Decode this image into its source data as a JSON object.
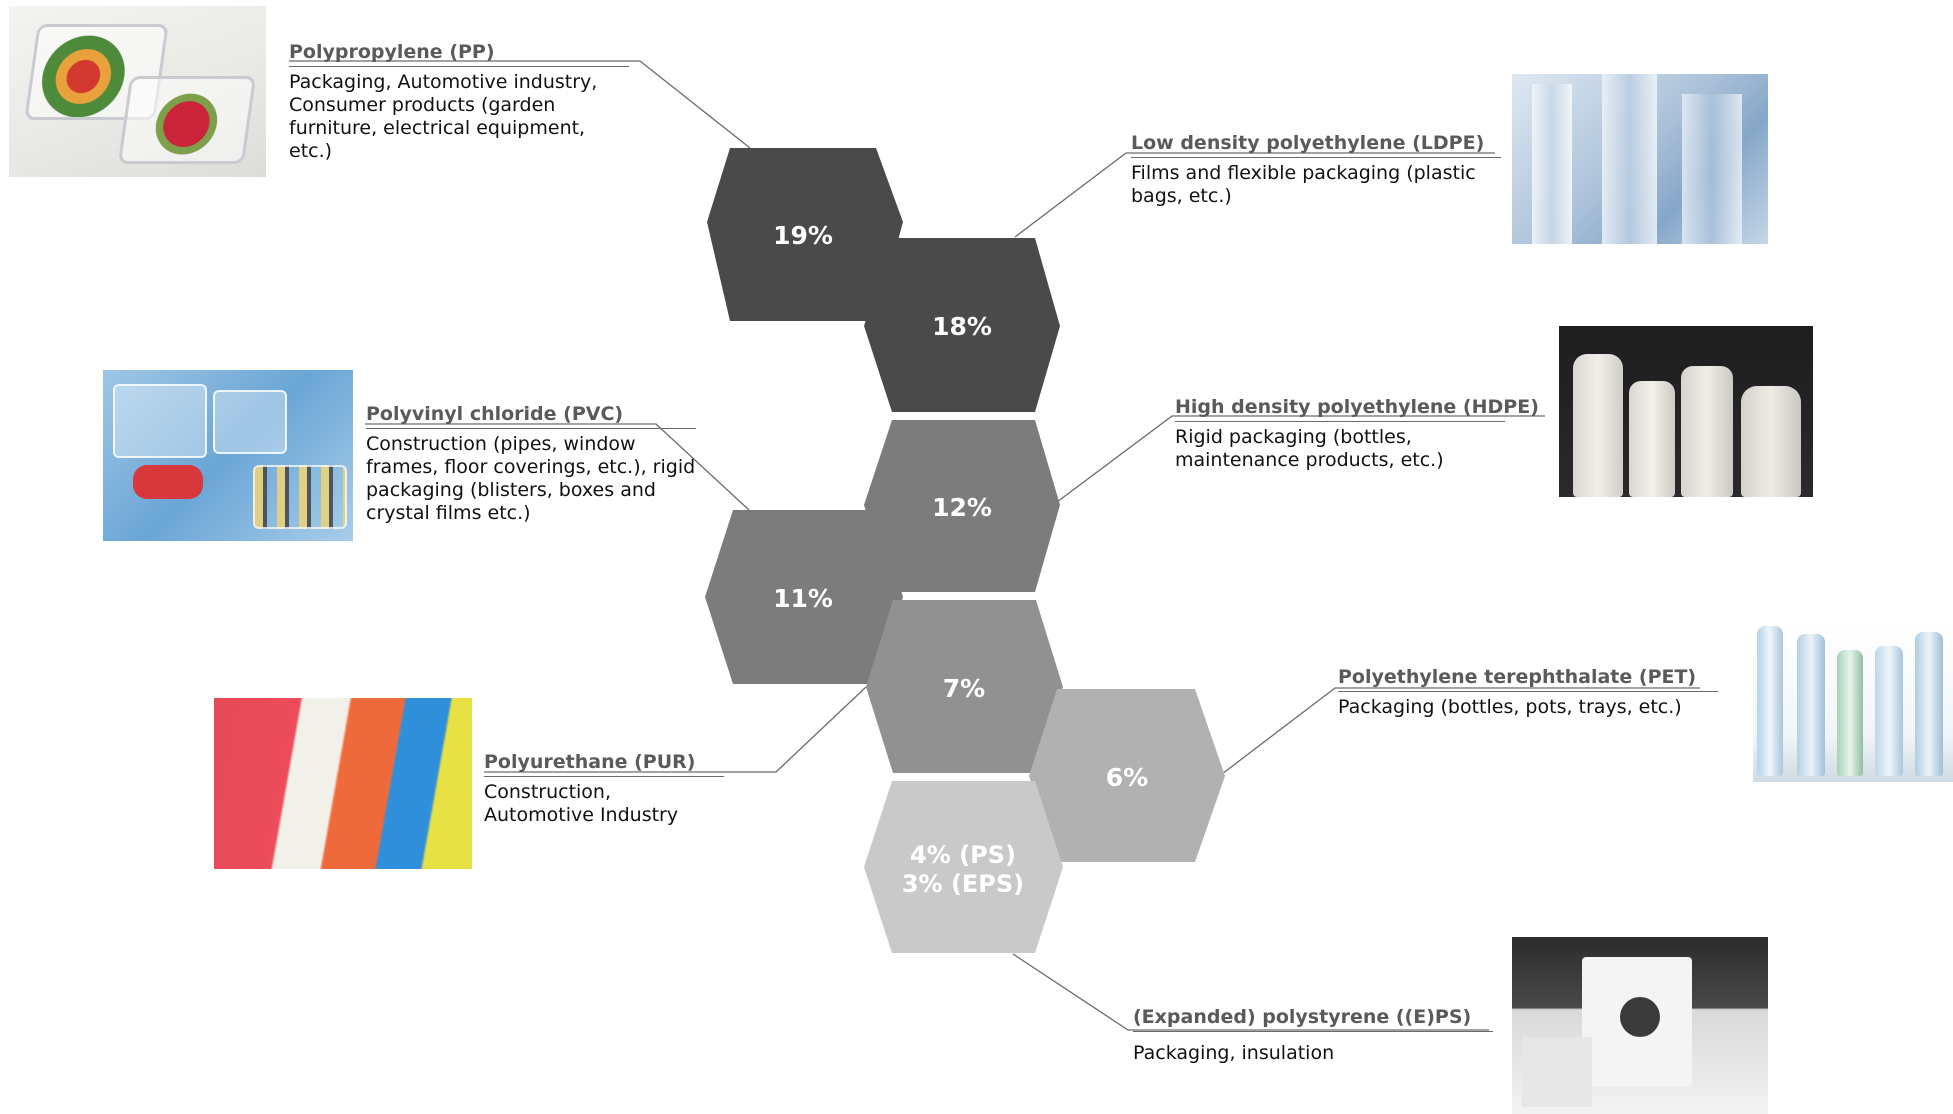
{
  "hexagons": [
    {
      "id": "pp",
      "lines": [
        "19%"
      ],
      "fill": "#4a4a4a"
    },
    {
      "id": "ldpe",
      "lines": [
        "18%"
      ],
      "fill": "#4a4a4a"
    },
    {
      "id": "hdpe",
      "lines": [
        "12%"
      ],
      "fill": "#7c7c7c"
    },
    {
      "id": "pvc",
      "lines": [
        "11%"
      ],
      "fill": "#7c7c7c"
    },
    {
      "id": "pur",
      "lines": [
        "7%"
      ],
      "fill": "#919191"
    },
    {
      "id": "pet",
      "lines": [
        "6%"
      ],
      "fill": "#b1b1b1"
    },
    {
      "id": "ps",
      "lines": [
        "4% (PS)",
        "3% (EPS)"
      ],
      "fill": "#c9c9c9"
    }
  ],
  "labels": {
    "pp": {
      "title": "Polypropylene (PP)",
      "description": "Packaging, Automotive industry, Consumer products (garden furniture, electrical equipment, etc.)"
    },
    "ldpe": {
      "title": "Low density polyethylene (LDPE)",
      "description": "Films and flexible packaging (plastic bags, etc.)"
    },
    "hdpe": {
      "title": "High density polyethylene (HDPE)",
      "description": "Rigid packaging (bottles, maintenance products, etc.)"
    },
    "pvc": {
      "title": "Polyvinyl chloride (PVC)",
      "description": "Construction (pipes, window frames, floor coverings, etc.), rigid packaging (blisters, boxes and crystal films etc.)"
    },
    "pur": {
      "title": "Polyurethane (PUR)",
      "description": "Construction, Automotive Industry"
    },
    "pet": {
      "title": "Polyethylene terephthalate (PET)",
      "description": "Packaging (bottles, pots, trays, etc.)"
    },
    "eps": {
      "title": "(Expanded) polystyrene ((E)PS)",
      "description": "Packaging, insulation"
    }
  },
  "photos": {
    "pp": "photo of clear plastic food containers with fruit",
    "ldpe": "photo of transparent plastic film rolls",
    "hdpe": "photo of white opaque plastic bottles",
    "pvc": "photo of blister packaging",
    "pur": "photo of colored foam blocks",
    "pet": "photo of clear water bottles",
    "eps": "photo of white polystyrene packaging"
  },
  "colors": {
    "dark": "#4a4a4a",
    "mid": "#7c7c7c",
    "light": "#b1b1b1",
    "connector": "#6a6a6a"
  }
}
